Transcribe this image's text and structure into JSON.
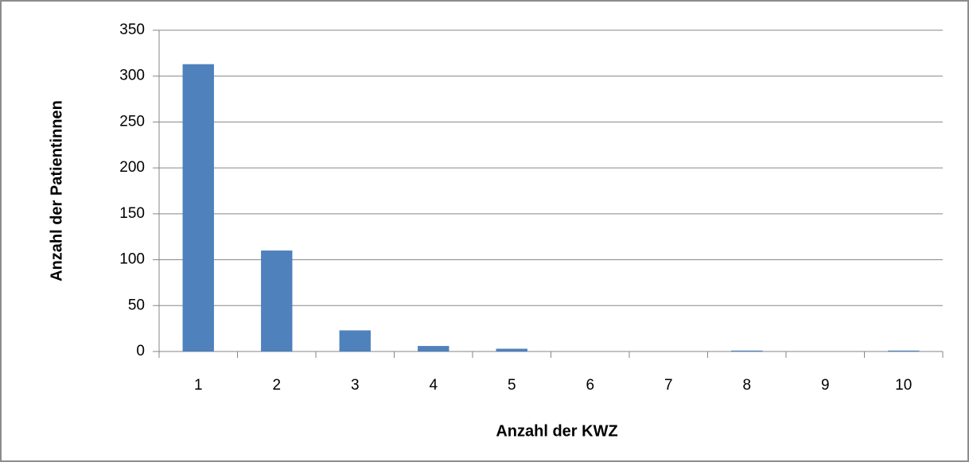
{
  "chart_data": {
    "type": "bar",
    "categories": [
      "1",
      "2",
      "3",
      "4",
      "5",
      "6",
      "7",
      "8",
      "9",
      "10"
    ],
    "values": [
      313,
      110,
      23,
      6,
      3,
      0,
      0,
      1,
      0,
      1
    ],
    "color": "#4f81bd",
    "xlabel": "Anzahl der KWZ",
    "ylabel": "Anzahl der Patientinnen",
    "ylim": [
      0,
      350
    ],
    "yticks": [
      0,
      50,
      100,
      150,
      200,
      250,
      300,
      350
    ],
    "grid": true
  }
}
